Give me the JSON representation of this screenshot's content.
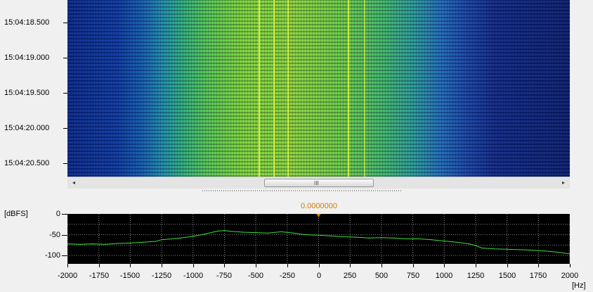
{
  "waterfall": {
    "time_labels": [
      "15:04:18.500",
      "15:04:19.000",
      "15:04:19.500",
      "15:04:20.000",
      "15:04:20.500"
    ]
  },
  "scrollbar": {
    "grip": "III",
    "left_arrow": "◂",
    "right_arrow": "▸"
  },
  "spectrum": {
    "y_unit": "[dBFS]",
    "x_unit": "[Hz]",
    "marker_frequency": "0.0000000",
    "y_ticks": [
      "0",
      "-50",
      "-100"
    ],
    "x_ticks": [
      "-2000",
      "-1750",
      "-1500",
      "-1250",
      "-1000",
      "-750",
      "-500",
      "-250",
      "0",
      "250",
      "500",
      "750",
      "1000",
      "1250",
      "1500",
      "1750",
      "2000"
    ],
    "trace_color": "#39e03a",
    "grid_color": "#8a8a8a",
    "marker_color": "#d07a00"
  },
  "chart_data": {
    "type": "line",
    "xlabel": "[Hz]",
    "ylabel": "[dBFS]",
    "xlim": [
      -2000,
      2000
    ],
    "ylim": [
      -120,
      0
    ],
    "grid": true,
    "series": [
      {
        "x": [
          -2000,
          -1900,
          -1800,
          -1700,
          -1600,
          -1500,
          -1400,
          -1300,
          -1250,
          -1100,
          -1000,
          -900,
          -800,
          -750,
          -700,
          -600,
          -500,
          -400,
          -300,
          -200,
          -100,
          0,
          100,
          200,
          300,
          400,
          500,
          600,
          700,
          800,
          900,
          1000,
          1100,
          1200,
          1250,
          1300,
          1400,
          1500,
          1600,
          1700,
          1800,
          1900,
          2000
        ],
        "values": [
          -72,
          -73,
          -72,
          -73,
          -71,
          -70,
          -68,
          -66,
          -62,
          -58,
          -54,
          -48,
          -41,
          -40,
          -42,
          -44,
          -45,
          -46,
          -43,
          -46,
          -50,
          -51,
          -53,
          -55,
          -56,
          -58,
          -57,
          -58,
          -60,
          -60,
          -62,
          -65,
          -68,
          -72,
          -76,
          -82,
          -84,
          -85,
          -86,
          -87,
          -89,
          -92,
          -96
        ]
      }
    ]
  }
}
